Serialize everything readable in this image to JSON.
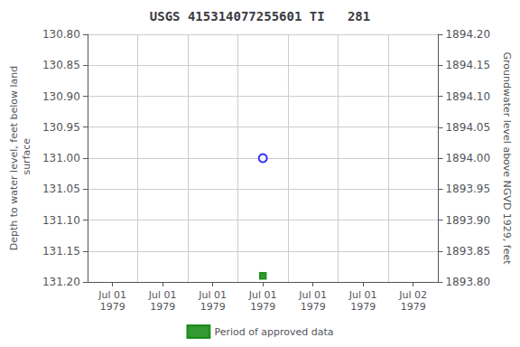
{
  "chart_data": {
    "type": "scatter",
    "title": "USGS 415314077255601 TI   281",
    "ylabel": "Depth to water level, feet below land\n surface",
    "y2label": "Groundwater level above NGVD 1929, feet",
    "categories": [
      "Jul 01\n1979",
      "Jul 01\n1979",
      "Jul 01\n1979",
      "Jul 01\n1979",
      "Jul 01\n1979",
      "Jul 01\n1979",
      "Jul 02\n1979"
    ],
    "series": [
      {
        "color": "#0000ff",
        "marker": "open_circle",
        "values": [
          null,
          null,
          null,
          131.0,
          null,
          null,
          null
        ]
      },
      {
        "name": "Period of approved data",
        "color": "#008000",
        "marker": "square",
        "values": [
          null,
          null,
          null,
          131.19,
          null,
          null,
          null
        ]
      }
    ],
    "ylim": [
      131.2,
      130.8
    ],
    "yticks": [
      {
        "value": 130.8,
        "label": "130.80"
      },
      {
        "value": 130.85,
        "label": "130.85"
      },
      {
        "value": 130.9,
        "label": "130.90"
      },
      {
        "value": 130.95,
        "label": "130.95"
      },
      {
        "value": 131.0,
        "label": "131.00"
      },
      {
        "value": 131.05,
        "label": "131.05"
      },
      {
        "value": 131.1,
        "label": "131.10"
      },
      {
        "value": 131.15,
        "label": "131.15"
      },
      {
        "value": 131.2,
        "label": "131.20"
      }
    ],
    "y2lim": [
      1893.8,
      1894.2
    ],
    "y2ticks": [
      {
        "value": 1894.2,
        "label": "1894.20"
      },
      {
        "value": 1894.15,
        "label": "1894.15"
      },
      {
        "value": 1894.1,
        "label": "1894.10"
      },
      {
        "value": 1894.05,
        "label": "1894.05"
      },
      {
        "value": 1894.0,
        "label": "1894.00"
      },
      {
        "value": 1893.95,
        "label": "1893.95"
      },
      {
        "value": 1893.9,
        "label": "1893.90"
      },
      {
        "value": 1893.85,
        "label": "1893.85"
      },
      {
        "value": 1893.8,
        "label": "1893.80"
      }
    ],
    "grid": true,
    "legend": "bottom"
  }
}
